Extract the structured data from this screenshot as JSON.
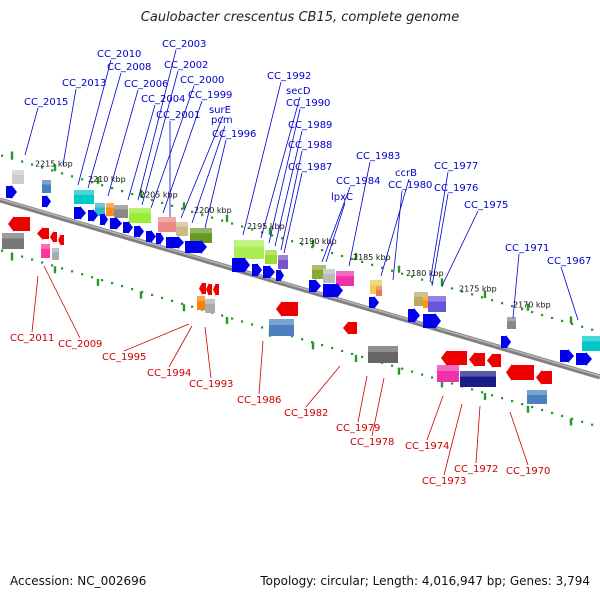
{
  "title": "Caulobacter crescentus CB15, complete genome",
  "footer": {
    "accession": "Accession: NC_002696",
    "summary": "Topology: circular; Length: 4,016,947 bp; Genes: 3,794"
  },
  "colors": {
    "forward_label": "#0000cc",
    "reverse_label": "#cc0000",
    "forward_gene": "#0000ee",
    "reverse_gene": "#ee0000",
    "ruler_tick": "#229922",
    "backbone": "#808080"
  },
  "kbp_marks": [
    "2215 kbp",
    "2210 kbp",
    "2205 kbp",
    "2200 kbp",
    "2195 kbp",
    "2190 kbp",
    "2185 kbp",
    "2180 kbp",
    "2175 kbp",
    "2170 kbp"
  ],
  "top_labels": [
    "CC_2015",
    "CC_2013",
    "CC_2010",
    "CC_2008",
    "CC_2006",
    "CC_2004",
    "CC_2003",
    "CC_2002",
    "CC_2000",
    "CC_1999",
    "surE",
    "CC_2001",
    "pcm",
    "CC_1996",
    "CC_1992",
    "secD",
    "CC_1990",
    "CC_1989",
    "CC_1988",
    "CC_1987",
    "CC_1984",
    "lpxC",
    "CC_1983",
    "ccrB",
    "CC_1980",
    "CC_1977",
    "CC_1976",
    "CC_1975",
    "CC_1971",
    "CC_1967"
  ],
  "bottom_labels": [
    "CC_2011",
    "CC_2009",
    "CC_1995",
    "CC_1994",
    "CC_1993",
    "CC_1986",
    "CC_1982",
    "CC_1979",
    "CC_1978",
    "CC_1974",
    "CC_1973",
    "CC_1972",
    "CC_1970"
  ]
}
